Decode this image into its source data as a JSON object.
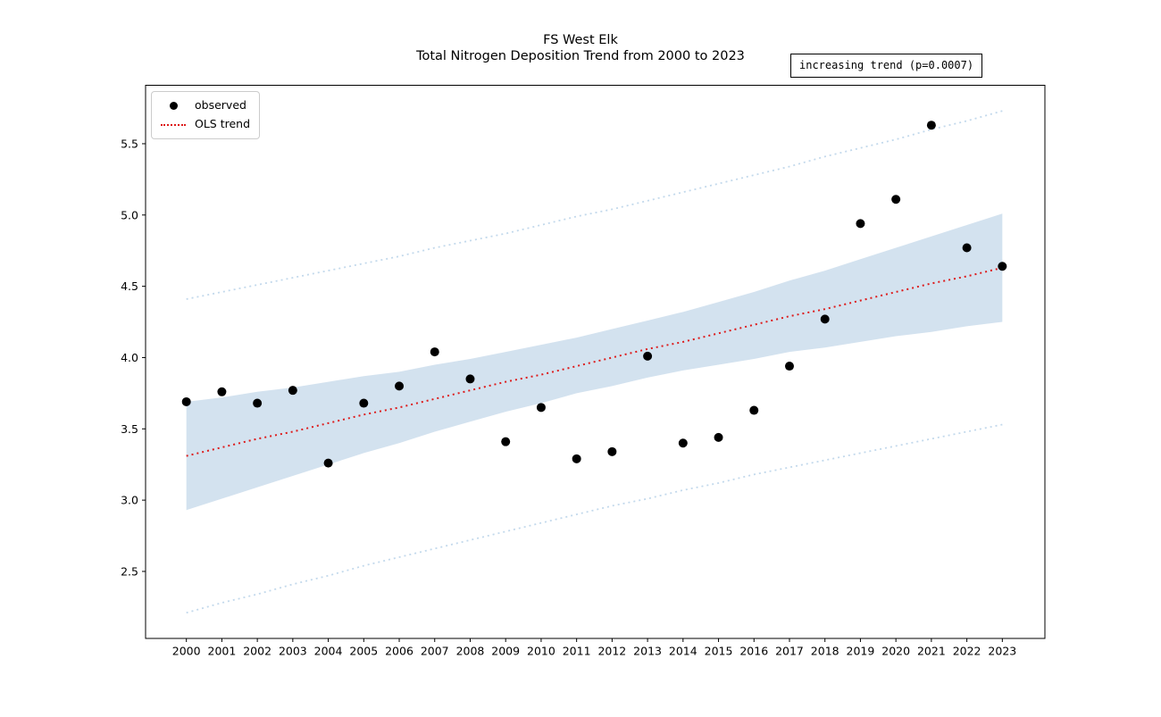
{
  "title": {
    "line1": "FS West Elk",
    "line2": "Total Nitrogen Deposition Trend from 2000 to 2023"
  },
  "annotation": {
    "text": "increasing trend (p=0.0007)"
  },
  "legend": {
    "position": "upper left",
    "items": [
      {
        "label": "observed",
        "marker": "black-dot"
      },
      {
        "label": "OLS trend",
        "marker": "red-dotted-line"
      }
    ]
  },
  "colors": {
    "observed": "#000000",
    "trend": "#dd1c1c",
    "ci_band": "#d3e2ef",
    "prediction_interval": "#c3d9ec",
    "axes": "#000000",
    "legend_border": "#cccccc"
  },
  "chart_data": {
    "type": "scatter",
    "title": "FS West Elk\nTotal Nitrogen Deposition Trend from 2000 to 2023",
    "xlabel": "",
    "ylabel": "",
    "grid": false,
    "legend_position": "upper left",
    "xlim": [
      1998.85,
      2024.2
    ],
    "ylim": [
      2.03,
      5.91
    ],
    "xticks": [
      2000,
      2001,
      2002,
      2003,
      2004,
      2005,
      2006,
      2007,
      2008,
      2009,
      2010,
      2011,
      2012,
      2013,
      2014,
      2015,
      2016,
      2017,
      2018,
      2019,
      2020,
      2021,
      2022,
      2023
    ],
    "yticks": [
      2.5,
      3.0,
      3.5,
      4.0,
      4.5,
      5.0,
      5.5
    ],
    "x": [
      2000,
      2001,
      2002,
      2003,
      2004,
      2005,
      2006,
      2007,
      2008,
      2009,
      2010,
      2011,
      2012,
      2013,
      2014,
      2015,
      2016,
      2017,
      2018,
      2019,
      2020,
      2021,
      2022,
      2023
    ],
    "series": [
      {
        "name": "95% confidence band",
        "type": "band",
        "color": "#d3e2ef",
        "upper": [
          3.69,
          3.72,
          3.76,
          3.79,
          3.83,
          3.87,
          3.9,
          3.95,
          3.99,
          4.04,
          4.09,
          4.14,
          4.2,
          4.26,
          4.32,
          4.39,
          4.46,
          4.54,
          4.61,
          4.69,
          4.77,
          4.85,
          4.93,
          5.01
        ],
        "lower": [
          2.93,
          3.01,
          3.09,
          3.17,
          3.25,
          3.33,
          3.4,
          3.48,
          3.55,
          3.62,
          3.68,
          3.75,
          3.8,
          3.86,
          3.91,
          3.95,
          3.99,
          4.04,
          4.07,
          4.11,
          4.15,
          4.18,
          4.22,
          4.25
        ]
      },
      {
        "name": "prediction interval upper",
        "type": "line",
        "style": "dotted",
        "color": "#c3d9ec",
        "width": 1.8,
        "values": [
          4.41,
          4.46,
          4.51,
          4.56,
          4.61,
          4.66,
          4.71,
          4.77,
          4.82,
          4.87,
          4.93,
          4.99,
          5.04,
          5.1,
          5.16,
          5.22,
          5.28,
          5.34,
          5.41,
          5.47,
          5.53,
          5.6,
          5.66,
          5.73
        ]
      },
      {
        "name": "prediction interval lower",
        "type": "line",
        "style": "dotted",
        "color": "#c3d9ec",
        "width": 1.8,
        "values": [
          2.21,
          2.28,
          2.34,
          2.41,
          2.47,
          2.54,
          2.6,
          2.66,
          2.72,
          2.78,
          2.84,
          2.9,
          2.96,
          3.01,
          3.07,
          3.12,
          3.18,
          3.23,
          3.28,
          3.33,
          3.38,
          3.43,
          3.48,
          3.53
        ]
      },
      {
        "name": "OLS trend",
        "type": "line",
        "style": "dotted",
        "color": "#dd1c1c",
        "width": 2,
        "values": [
          3.31,
          3.37,
          3.43,
          3.48,
          3.54,
          3.6,
          3.65,
          3.71,
          3.77,
          3.83,
          3.88,
          3.94,
          4.0,
          4.06,
          4.11,
          4.17,
          4.23,
          4.29,
          4.34,
          4.4,
          4.46,
          4.52,
          4.57,
          4.63
        ]
      },
      {
        "name": "observed",
        "type": "scatter",
        "color": "#000000",
        "radius": 5,
        "values": [
          3.69,
          3.76,
          3.68,
          3.77,
          3.26,
          3.68,
          3.8,
          4.04,
          3.85,
          3.41,
          3.65,
          3.29,
          3.34,
          4.01,
          3.4,
          3.44,
          3.63,
          3.94,
          4.27,
          4.94,
          5.11,
          5.63,
          4.77,
          4.64
        ]
      }
    ]
  }
}
